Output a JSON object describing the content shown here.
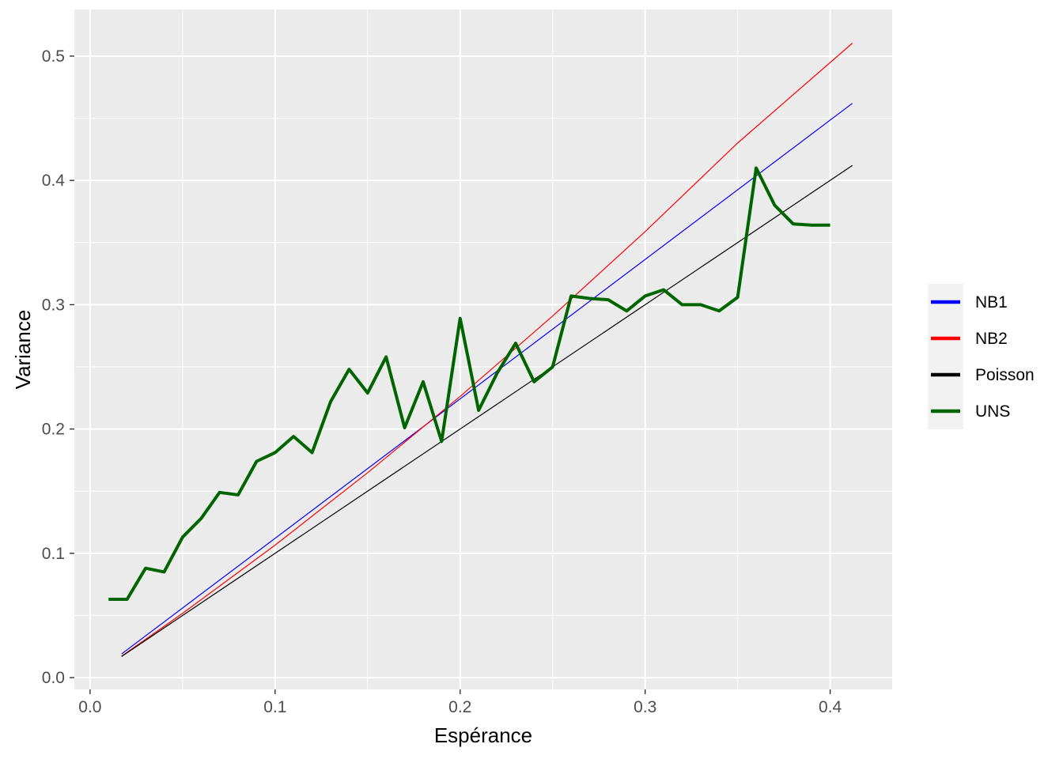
{
  "chart_data": {
    "type": "line",
    "xlabel": "Espérance",
    "ylabel": "Variance",
    "xlim": [
      -0.0085,
      0.4335
    ],
    "ylim": [
      -0.0095,
      0.5375
    ],
    "x_ticks": [
      0.0,
      0.1,
      0.2,
      0.3,
      0.4
    ],
    "x_tick_labels": [
      "0.0",
      "0.1",
      "0.2",
      "0.3",
      "0.4"
    ],
    "y_ticks": [
      0.0,
      0.1,
      0.2,
      0.3,
      0.4,
      0.5
    ],
    "y_tick_labels": [
      "0.0",
      "0.1",
      "0.2",
      "0.3",
      "0.4",
      "0.5"
    ],
    "grid": true,
    "legend_position": "right",
    "series": [
      {
        "name": "NB1",
        "color": "#0000ff",
        "width": 1.2,
        "x": [
          0.017,
          0.412
        ],
        "y": [
          0.019,
          0.462
        ]
      },
      {
        "name": "NB2",
        "color": "#ff0000",
        "width": 1.2,
        "x": [
          0.017,
          0.05,
          0.1,
          0.15,
          0.2,
          0.25,
          0.3,
          0.35,
          0.412
        ],
        "y": [
          0.0172,
          0.0517,
          0.1066,
          0.1648,
          0.2262,
          0.2909,
          0.3588,
          0.4301,
          0.5104
        ]
      },
      {
        "name": "Poisson",
        "color": "#000000",
        "width": 1.2,
        "x": [
          0.017,
          0.412
        ],
        "y": [
          0.017,
          0.412
        ]
      },
      {
        "name": "UNS",
        "color": "#006400",
        "width": 4,
        "x": [
          0.01,
          0.02,
          0.03,
          0.04,
          0.05,
          0.06,
          0.07,
          0.08,
          0.09,
          0.1,
          0.11,
          0.12,
          0.13,
          0.14,
          0.15,
          0.16,
          0.17,
          0.18,
          0.19,
          0.2,
          0.21,
          0.22,
          0.23,
          0.24,
          0.25,
          0.26,
          0.27,
          0.28,
          0.29,
          0.3,
          0.31,
          0.32,
          0.33,
          0.34,
          0.35,
          0.36,
          0.37,
          0.38,
          0.39,
          0.4
        ],
        "y": [
          0.063,
          0.063,
          0.088,
          0.085,
          0.113,
          0.128,
          0.149,
          0.147,
          0.174,
          0.181,
          0.194,
          0.181,
          0.222,
          0.248,
          0.229,
          0.258,
          0.201,
          0.238,
          0.19,
          0.289,
          0.215,
          0.245,
          0.269,
          0.238,
          0.25,
          0.307,
          0.305,
          0.304,
          0.295,
          0.307,
          0.312,
          0.3,
          0.3,
          0.295,
          0.306,
          0.41,
          0.38,
          0.365,
          0.364,
          0.364
        ]
      }
    ]
  }
}
